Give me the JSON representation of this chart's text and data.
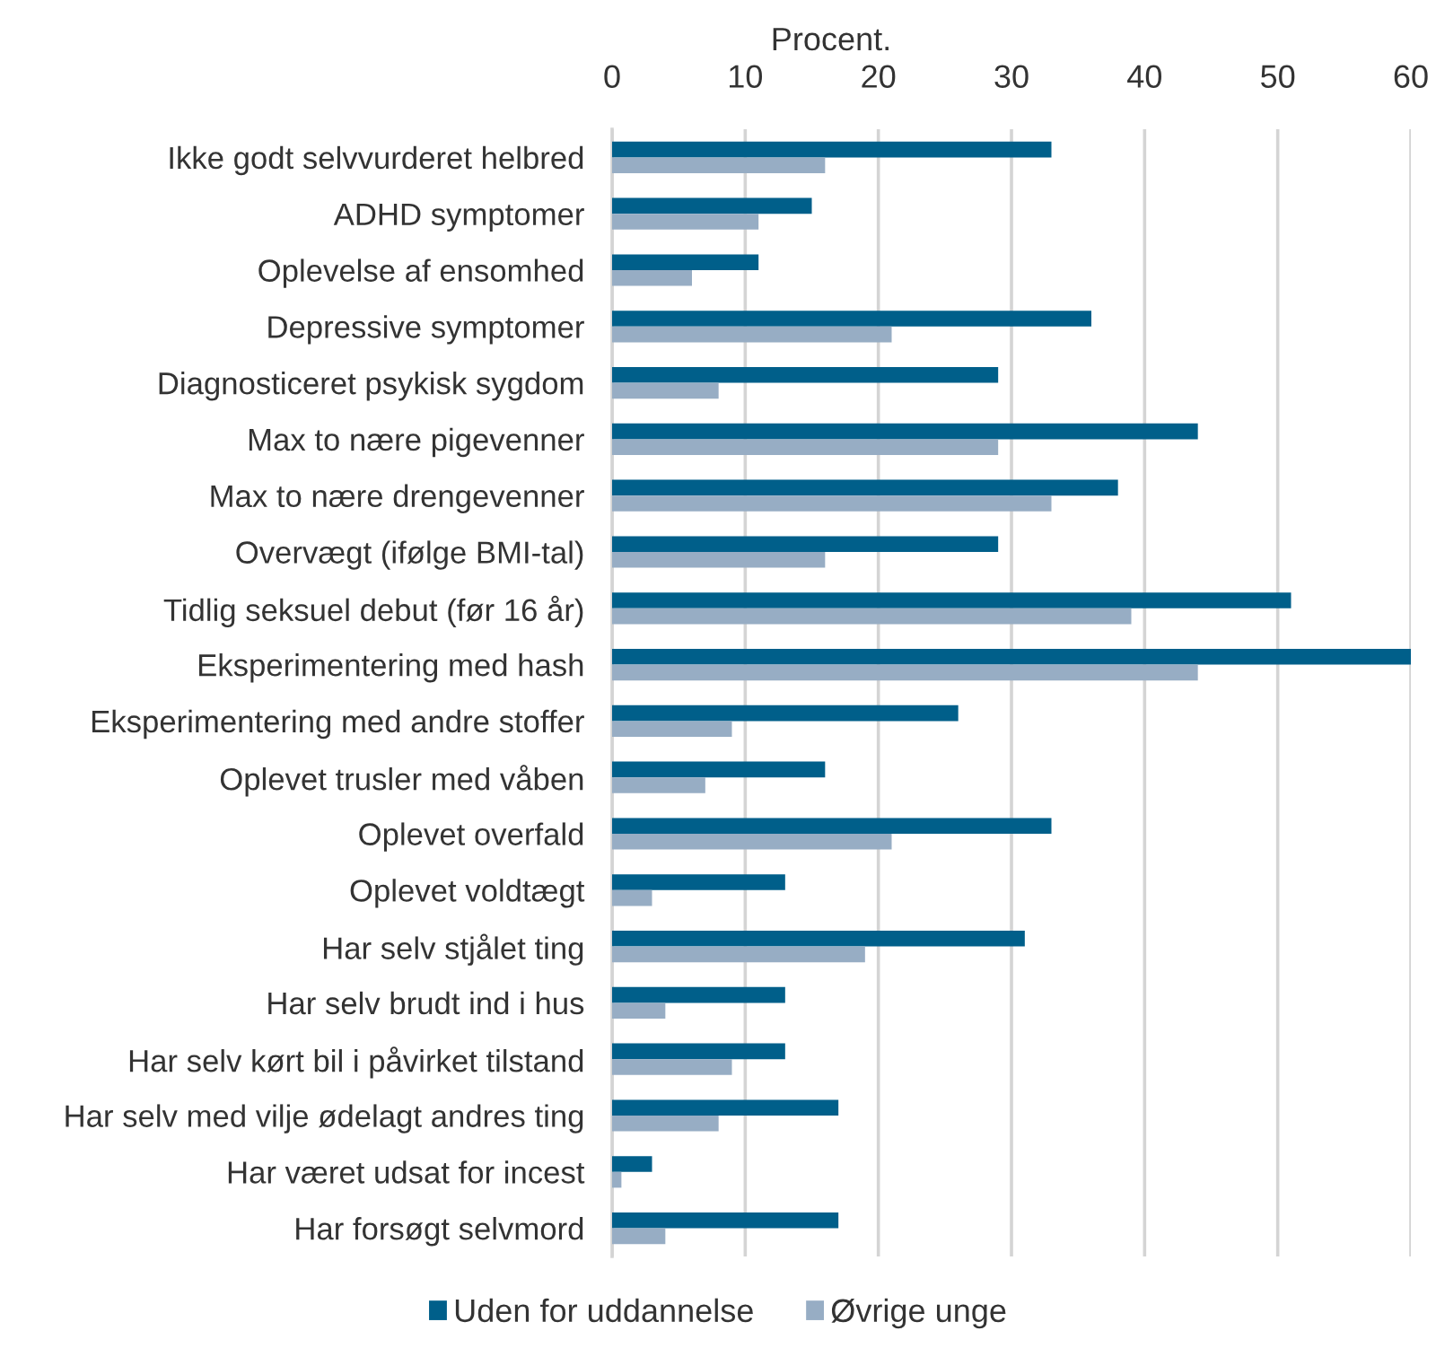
{
  "chart_data": {
    "type": "bar",
    "orientation": "horizontal",
    "xlabel": "Procent.",
    "categories": [
      "Ikke godt selvvurderet helbred",
      "ADHD symptomer",
      "Oplevelse af ensomhed",
      "Depressive symptomer",
      "Diagnosticeret psykisk sygdom",
      "Max to nære pigevenner",
      "Max to nære drengevenner",
      "Overvægt (ifølge BMI-tal)",
      "Tidlig seksuel debut (før 16 år)",
      "Eksperimentering med hash",
      "Eksperimentering med andre stoffer",
      "Oplevet trusler med våben",
      "Oplevet overfald",
      "Oplevet voldtægt",
      "Har selv stjålet ting",
      "Har selv brudt ind i hus",
      "Har selv kørt bil i påvirket tilstand",
      "Har selv med vilje ødelagt andres ting",
      "Har været udsat for incest",
      "Har forsøgt selvmord"
    ],
    "series": [
      {
        "name": "Uden for uddannelse",
        "color": "#005f8a",
        "values": [
          33,
          15,
          11,
          36,
          29,
          44,
          38,
          29,
          51,
          60,
          26,
          16,
          33,
          13,
          31,
          13,
          13,
          17,
          3,
          17
        ]
      },
      {
        "name": "Øvrige unge",
        "color": "#97adc4",
        "values": [
          16,
          11,
          6,
          21,
          8,
          29,
          33,
          16,
          39,
          44,
          9,
          7,
          21,
          3,
          19,
          4,
          9,
          8,
          0.7,
          4
        ]
      }
    ],
    "xlim": [
      0,
      60
    ],
    "xticks": [
      0,
      10,
      20,
      30,
      40,
      50,
      60
    ],
    "grid": "x",
    "legend": "bottom"
  }
}
